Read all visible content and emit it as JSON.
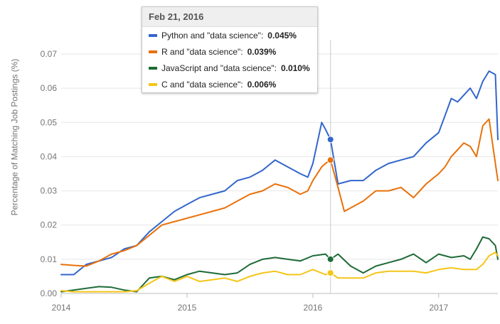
{
  "chart_data": {
    "type": "line",
    "ylabel": "Percentage of Matching Job Postings (%)",
    "xlabel": "",
    "ylim": [
      0,
      0.07
    ],
    "y_ticks": [
      0.0,
      0.01,
      0.02,
      0.03,
      0.04,
      0.05,
      0.06,
      0.07
    ],
    "y_tick_labels": [
      "0.00",
      "0.01",
      "0.02",
      "0.03",
      "0.04",
      "0.05",
      "0.06",
      "0.07"
    ],
    "xlim": [
      2014.0,
      2017.47
    ],
    "x_ticks": [
      2014,
      2015,
      2016,
      2017
    ],
    "x_tick_labels": [
      "2014",
      "2015",
      "2016",
      "2017"
    ],
    "grid": true,
    "hover_x": 2016.14,
    "tooltip": {
      "title": "Feb 21, 2016",
      "rows": [
        {
          "label": "Python and \"data science\":",
          "value": "0.045%",
          "color": "#3366cc"
        },
        {
          "label": "R and \"data science\":",
          "value": "0.039%",
          "color": "#e8710a"
        },
        {
          "label": "JavaScript and \"data science\":",
          "value": "0.010%",
          "color": "#1e6b37"
        },
        {
          "label": "C and \"data science\":",
          "value": "0.006%",
          "color": "#f5c518"
        }
      ]
    },
    "series": [
      {
        "color": "#3366cc",
        "hover_value": 0.045,
        "x": [
          2014.0,
          2014.1,
          2014.2,
          2014.3,
          2014.4,
          2014.5,
          2014.6,
          2014.7,
          2014.8,
          2014.9,
          2015.0,
          2015.1,
          2015.2,
          2015.3,
          2015.4,
          2015.5,
          2015.6,
          2015.7,
          2015.8,
          2015.9,
          2015.96,
          2016.0,
          2016.07,
          2016.1,
          2016.14,
          2016.2,
          2016.3,
          2016.4,
          2016.5,
          2016.6,
          2016.7,
          2016.8,
          2016.9,
          2017.0,
          2017.05,
          2017.1,
          2017.15,
          2017.2,
          2017.25,
          2017.3,
          2017.35,
          2017.4,
          2017.45,
          2017.47
        ],
        "y": [
          0.0055,
          0.0055,
          0.0085,
          0.0095,
          0.0105,
          0.013,
          0.014,
          0.018,
          0.021,
          0.024,
          0.026,
          0.028,
          0.029,
          0.03,
          0.033,
          0.034,
          0.036,
          0.039,
          0.037,
          0.035,
          0.034,
          0.038,
          0.05,
          0.048,
          0.045,
          0.032,
          0.033,
          0.033,
          0.036,
          0.038,
          0.039,
          0.04,
          0.044,
          0.047,
          0.052,
          0.057,
          0.056,
          0.058,
          0.06,
          0.057,
          0.062,
          0.065,
          0.064,
          0.045
        ]
      },
      {
        "color": "#e8710a",
        "hover_value": 0.039,
        "x": [
          2014.0,
          2014.1,
          2014.2,
          2014.3,
          2014.4,
          2014.5,
          2014.6,
          2014.7,
          2014.8,
          2014.9,
          2015.0,
          2015.1,
          2015.2,
          2015.3,
          2015.4,
          2015.5,
          2015.6,
          2015.7,
          2015.8,
          2015.9,
          2015.96,
          2016.0,
          2016.07,
          2016.1,
          2016.14,
          2016.2,
          2016.25,
          2016.3,
          2016.4,
          2016.5,
          2016.6,
          2016.7,
          2016.8,
          2016.9,
          2017.0,
          2017.05,
          2017.1,
          2017.15,
          2017.2,
          2017.25,
          2017.3,
          2017.35,
          2017.4,
          2017.45,
          2017.47
        ],
        "y": [
          0.0085,
          0.0082,
          0.008,
          0.0095,
          0.0115,
          0.0125,
          0.014,
          0.017,
          0.02,
          0.021,
          0.022,
          0.023,
          0.024,
          0.025,
          0.027,
          0.029,
          0.03,
          0.032,
          0.031,
          0.029,
          0.03,
          0.033,
          0.037,
          0.038,
          0.039,
          0.031,
          0.024,
          0.025,
          0.027,
          0.03,
          0.03,
          0.031,
          0.028,
          0.032,
          0.035,
          0.037,
          0.04,
          0.042,
          0.044,
          0.043,
          0.04,
          0.049,
          0.051,
          0.038,
          0.033
        ]
      },
      {
        "color": "#1e6b37",
        "hover_value": 0.01,
        "x": [
          2014.0,
          2014.1,
          2014.2,
          2014.3,
          2014.4,
          2014.5,
          2014.6,
          2014.65,
          2014.7,
          2014.8,
          2014.9,
          2015.0,
          2015.1,
          2015.2,
          2015.3,
          2015.4,
          2015.5,
          2015.6,
          2015.7,
          2015.8,
          2015.9,
          2016.0,
          2016.1,
          2016.14,
          2016.2,
          2016.3,
          2016.4,
          2016.5,
          2016.6,
          2016.7,
          2016.8,
          2016.9,
          2017.0,
          2017.1,
          2017.2,
          2017.25,
          2017.3,
          2017.35,
          2017.4,
          2017.45,
          2017.47
        ],
        "y": [
          0.0005,
          0.001,
          0.0015,
          0.002,
          0.0018,
          0.001,
          0.0005,
          0.0025,
          0.0045,
          0.005,
          0.004,
          0.0055,
          0.0065,
          0.006,
          0.0055,
          0.006,
          0.0085,
          0.01,
          0.0105,
          0.01,
          0.0095,
          0.011,
          0.0115,
          0.01,
          0.0115,
          0.008,
          0.006,
          0.008,
          0.009,
          0.01,
          0.0115,
          0.009,
          0.0115,
          0.0105,
          0.011,
          0.01,
          0.013,
          0.0165,
          0.016,
          0.014,
          0.01
        ]
      },
      {
        "color": "#f5c518",
        "hover_value": 0.006,
        "x": [
          2014.0,
          2014.1,
          2014.2,
          2014.3,
          2014.4,
          2014.5,
          2014.6,
          2014.7,
          2014.8,
          2014.9,
          2015.0,
          2015.1,
          2015.2,
          2015.3,
          2015.4,
          2015.5,
          2015.6,
          2015.7,
          2015.8,
          2015.9,
          2016.0,
          2016.1,
          2016.14,
          2016.2,
          2016.3,
          2016.4,
          2016.5,
          2016.6,
          2016.7,
          2016.8,
          2016.9,
          2017.0,
          2017.1,
          2017.2,
          2017.3,
          2017.35,
          2017.4,
          2017.45,
          2017.47
        ],
        "y": [
          0.0008,
          0.0005,
          0.0005,
          0.0005,
          0.0005,
          0.0005,
          0.0008,
          0.003,
          0.005,
          0.0035,
          0.005,
          0.0035,
          0.004,
          0.0045,
          0.0035,
          0.005,
          0.006,
          0.0065,
          0.0055,
          0.0055,
          0.007,
          0.0055,
          0.006,
          0.0045,
          0.0045,
          0.0045,
          0.006,
          0.0065,
          0.0065,
          0.0065,
          0.006,
          0.007,
          0.0075,
          0.007,
          0.007,
          0.0085,
          0.011,
          0.012,
          0.011
        ]
      }
    ]
  }
}
